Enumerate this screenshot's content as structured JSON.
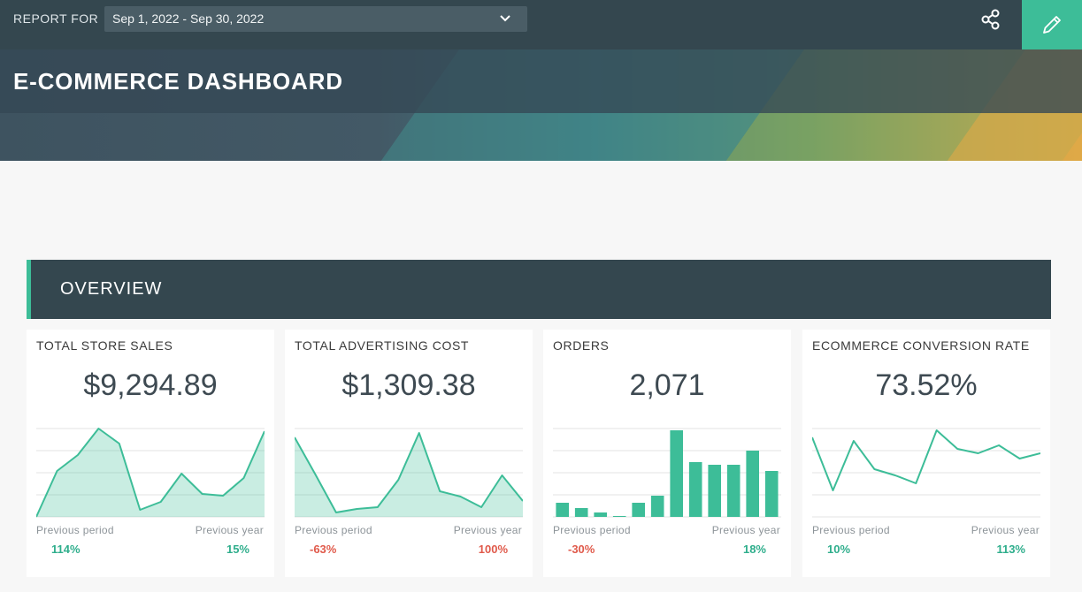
{
  "header": {
    "report_for_label": "REPORT FOR",
    "date_range": "Sep 1, 2022 - Sep 30, 2022",
    "title": "E-COMMERCE DASHBOARD"
  },
  "icons": {
    "dropdown": "chevron-down-icon",
    "share": "share-icon",
    "edit": "pencil-icon"
  },
  "section": {
    "title": "OVERVIEW"
  },
  "colors": {
    "accent": "#3dbd98",
    "header_dark": "#34474f",
    "positive": "#2fae8c",
    "negative": "#e05a4b"
  },
  "cards": [
    {
      "title": "TOTAL STORE SALES",
      "value": "$9,294.89",
      "chart_type": "area",
      "previous_period_label": "Previous period",
      "previous_period_value": "114%",
      "previous_period_trend": "up",
      "previous_year_label": "Previous year",
      "previous_year_value": "15%",
      "previous_year_trend": "up",
      "series": [
        0,
        52,
        70,
        100,
        83,
        8,
        17,
        49,
        26,
        24,
        44,
        97
      ]
    },
    {
      "title": "TOTAL ADVERTISING COST",
      "value": "$1,309.38",
      "chart_type": "area",
      "previous_period_label": "Previous period",
      "previous_period_value": "-63%",
      "previous_period_trend": "down",
      "previous_year_label": "Previous year",
      "previous_year_value": "100%",
      "previous_year_trend": "down",
      "series": [
        90,
        48,
        5,
        9,
        11,
        42,
        95,
        29,
        23,
        11,
        47,
        18
      ]
    },
    {
      "title": "ORDERS",
      "value": "2,071",
      "chart_type": "bar",
      "previous_period_label": "Previous period",
      "previous_period_value": "-30%",
      "previous_period_trend": "down",
      "previous_year_label": "Previous year",
      "previous_year_value": "18%",
      "previous_year_trend": "up",
      "series": [
        16,
        10,
        5,
        1,
        16,
        24,
        98,
        62,
        59,
        59,
        75,
        52
      ]
    },
    {
      "title": "ECOMMERCE CONVERSION RATE",
      "value": "73.52%",
      "chart_type": "line",
      "previous_period_label": "Previous period",
      "previous_period_value": "10%",
      "previous_period_trend": "up",
      "previous_year_label": "Previous year",
      "previous_year_value": "113%",
      "previous_year_trend": "up",
      "series": [
        90,
        30,
        86,
        54,
        47,
        38,
        98,
        77,
        72,
        81,
        66,
        72
      ]
    }
  ]
}
